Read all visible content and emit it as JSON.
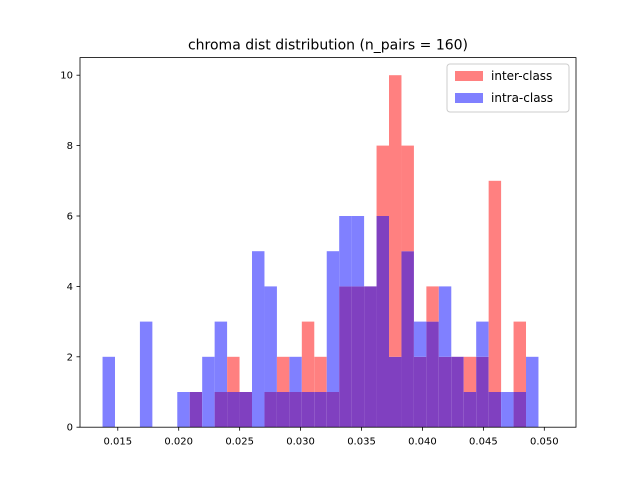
{
  "chart_data": {
    "type": "histogram",
    "title": "chroma dist distribution (n_pairs = 160)",
    "xlabel": "",
    "ylabel": "",
    "xlim": [
      0.0119,
      0.0526
    ],
    "ylim": [
      0,
      10.5
    ],
    "grid": false,
    "legend_position": "top-right",
    "bin_edges": [
      0.01375,
      0.014772,
      0.015794,
      0.016816,
      0.017838,
      0.01886,
      0.019882,
      0.020904,
      0.021926,
      0.022948,
      0.02397,
      0.024992,
      0.026014,
      0.027036,
      0.028058,
      0.02908,
      0.030102,
      0.031124,
      0.032146,
      0.033168,
      0.03419,
      0.035212,
      0.036234,
      0.037256,
      0.038278,
      0.0393,
      0.040322,
      0.041344,
      0.042366,
      0.043388,
      0.04441,
      0.045432,
      0.046454,
      0.047476,
      0.048498,
      0.04952,
      0.050542,
      0.051564
    ],
    "x_ticks": [
      "0.015",
      "0.020",
      "0.025",
      "0.030",
      "0.035",
      "0.040",
      "0.045",
      "0.050"
    ],
    "x_tick_values": [
      0.015,
      0.02,
      0.025,
      0.03,
      0.035,
      0.04,
      0.045,
      0.05
    ],
    "y_ticks": [
      "0",
      "2",
      "4",
      "6",
      "8",
      "10"
    ],
    "y_tick_values": [
      0,
      2,
      4,
      6,
      8,
      10
    ],
    "series": [
      {
        "name": "inter-class",
        "color": "#ff8080",
        "counts": [
          0,
          0,
          0,
          0,
          0,
          0,
          0,
          1,
          0,
          1,
          2,
          1,
          0,
          1,
          2,
          1,
          3,
          2,
          1,
          4,
          4,
          4,
          8,
          10,
          8,
          2,
          4,
          2,
          2,
          2,
          2,
          7,
          0,
          3,
          0,
          0,
          0
        ]
      },
      {
        "name": "intra-class",
        "color": "#8080ff",
        "counts": [
          2,
          0,
          0,
          3,
          0,
          0,
          1,
          1,
          2,
          3,
          1,
          1,
          5,
          4,
          1,
          2,
          1,
          1,
          5,
          6,
          6,
          4,
          6,
          2,
          5,
          3,
          3,
          4,
          2,
          1,
          3,
          1,
          1,
          1,
          2,
          0,
          0
        ]
      }
    ],
    "overlap_color": "#8040c0"
  }
}
